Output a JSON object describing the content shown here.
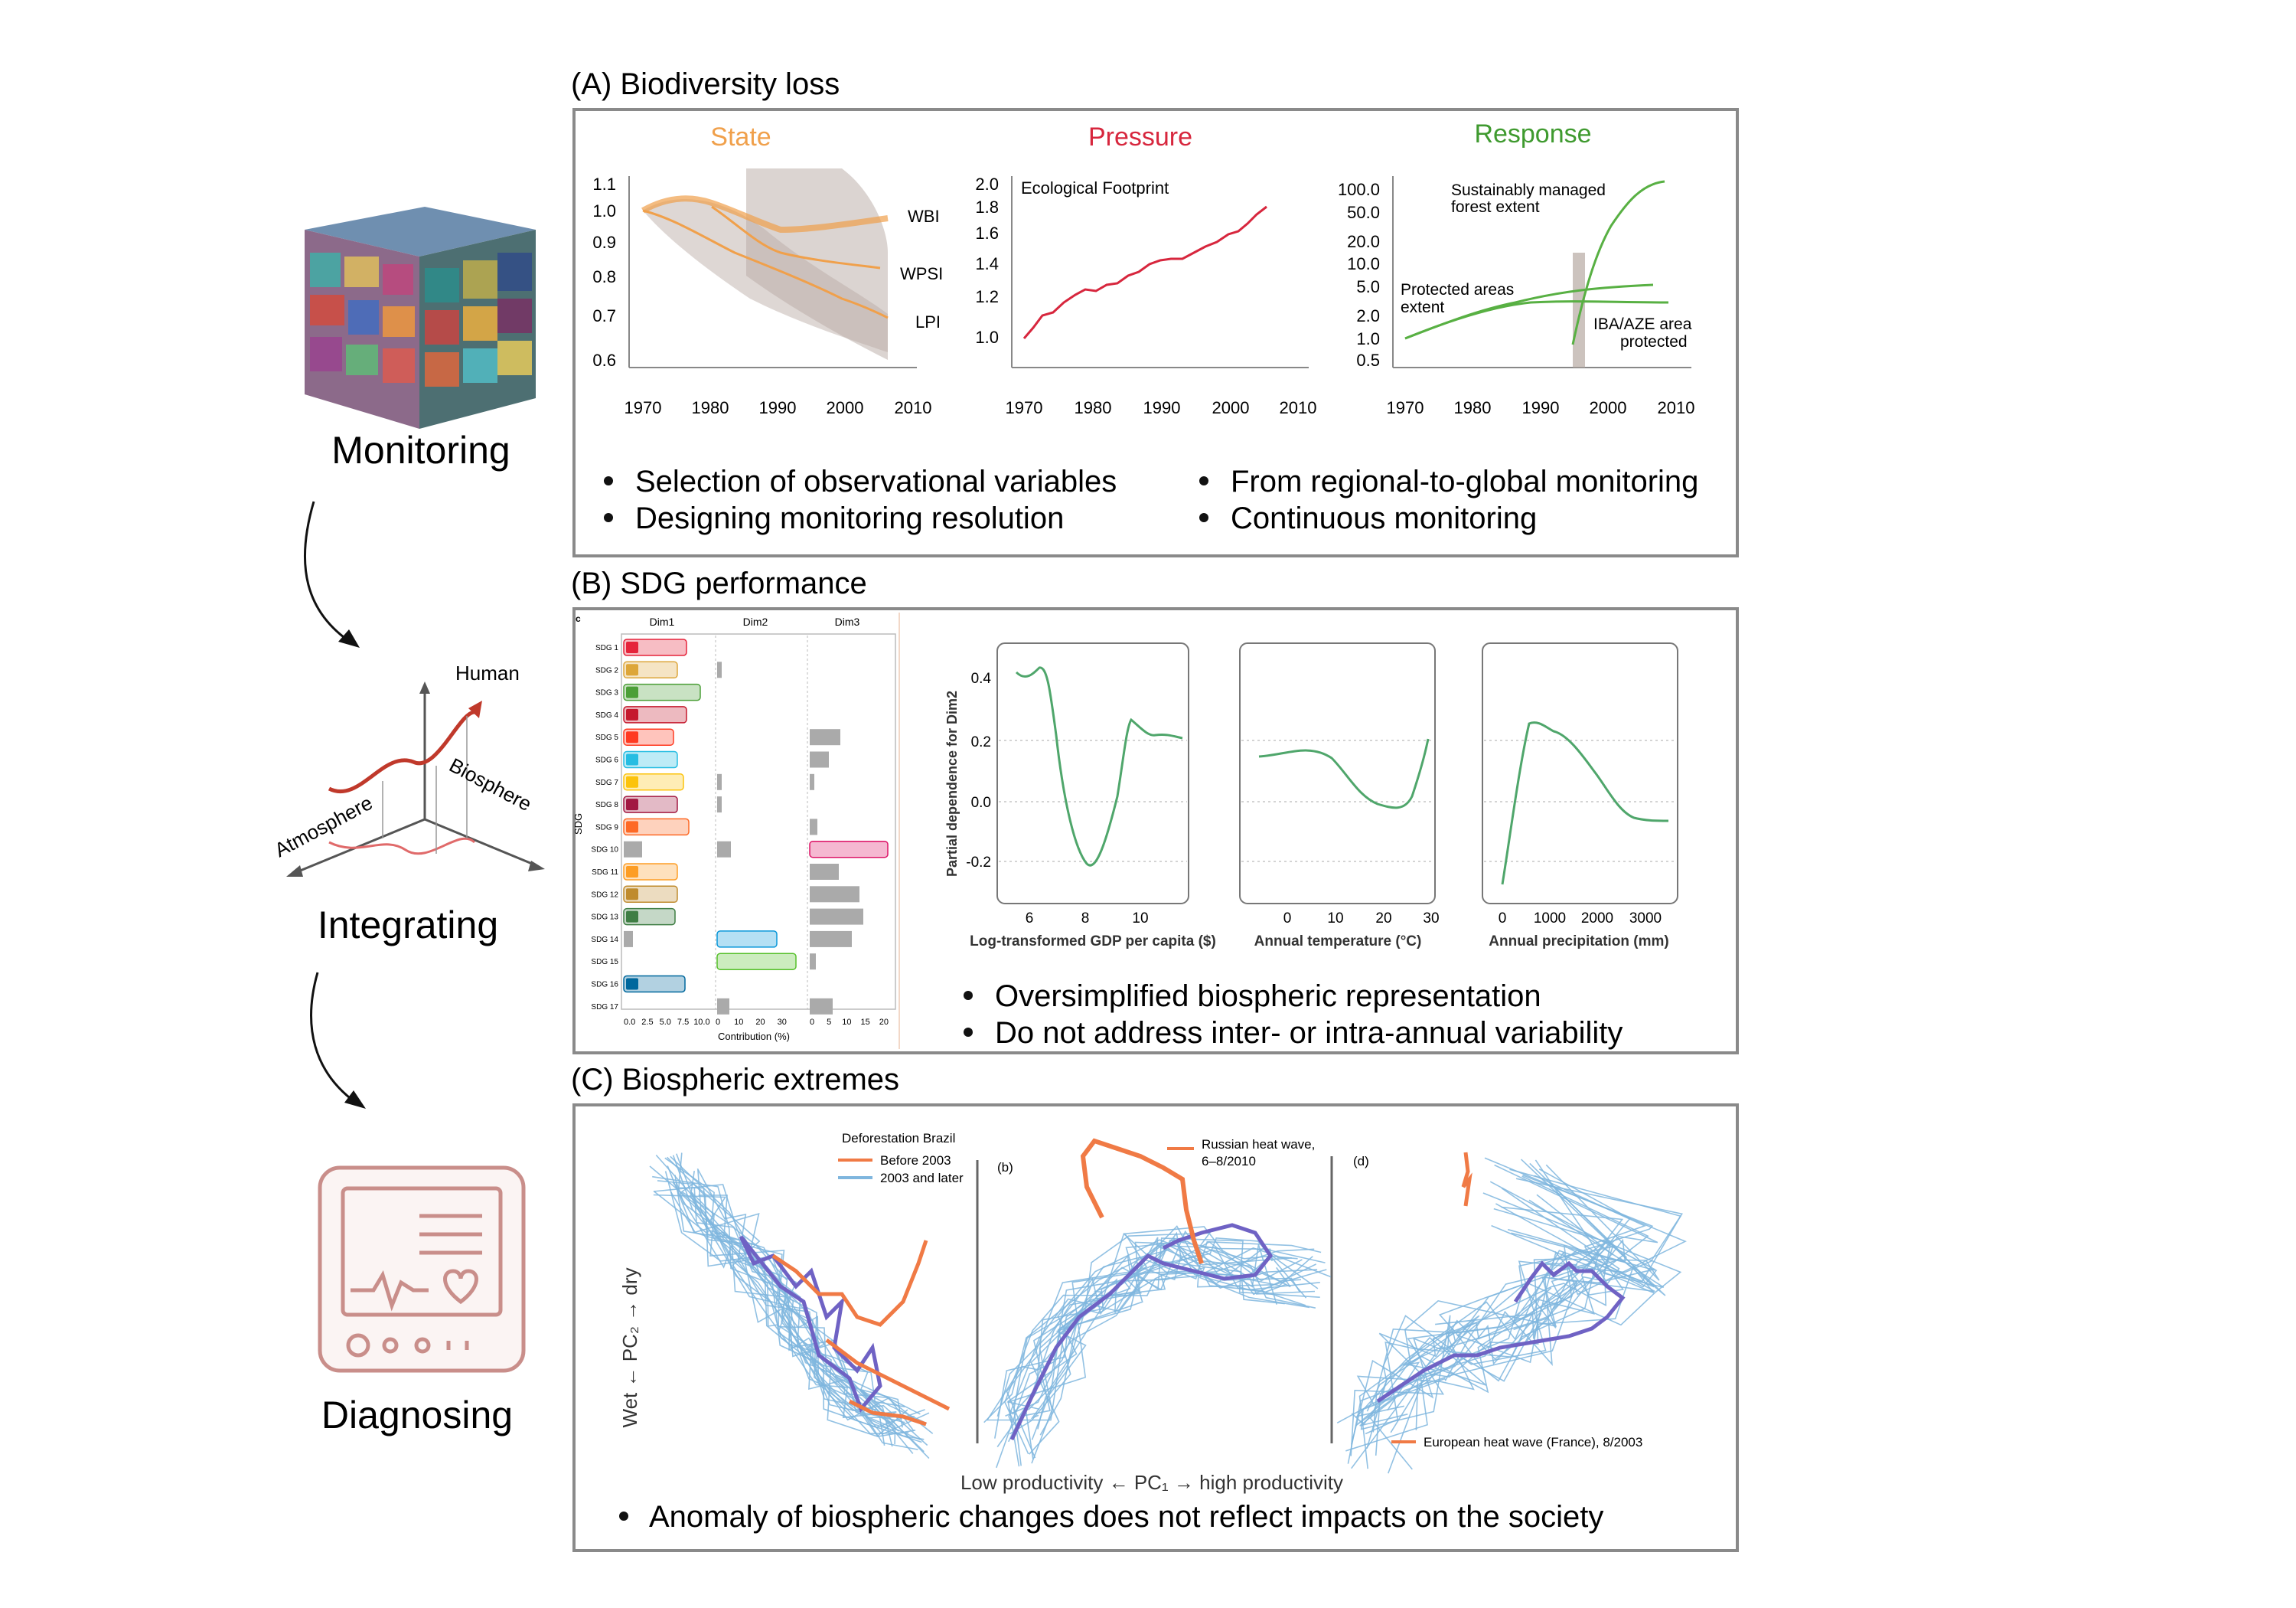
{
  "workflow": {
    "monitoring": "Monitoring",
    "integrating": "Integrating",
    "diagnosing": "Diagnosing",
    "axes": {
      "human": "Human",
      "biosphere": "Biosphere",
      "atmosphere": "Atmosphere"
    }
  },
  "panelA": {
    "title": "(A) Biodiversity loss",
    "state": {
      "title": "State",
      "yticks": [
        "1.1",
        "1.0",
        "0.9",
        "0.8",
        "0.7",
        "0.6"
      ],
      "xticks": [
        "1970",
        "1980",
        "1990",
        "2000",
        "2010"
      ],
      "series_labels": [
        "WBI",
        "WPSI",
        "LPI"
      ]
    },
    "pressure": {
      "title": "Pressure",
      "yticks": [
        "2.0",
        "1.8",
        "1.6",
        "1.4",
        "1.2",
        "1.0"
      ],
      "xticks": [
        "1970",
        "1980",
        "1990",
        "2000",
        "2010"
      ],
      "label": "Ecological Footprint"
    },
    "response": {
      "title": "Response",
      "yticks": [
        "100.0",
        "50.0",
        "20.0",
        "10.0",
        "5.0",
        "2.0",
        "1.0",
        "0.5"
      ],
      "xticks": [
        "1970",
        "1980",
        "1990",
        "2000",
        "2010"
      ],
      "label_forest_1": "Sustainably managed",
      "label_forest_2": "forest extent",
      "label_protected_1": "Protected areas",
      "label_protected_2": "extent",
      "label_iba_1": "IBA/AZE area",
      "label_iba_2": "protected"
    },
    "bullets": [
      "Selection of observational variables",
      "Designing monitoring resolution",
      "From regional-to-global monitoring",
      "Continuous monitoring"
    ]
  },
  "panelB": {
    "title": "(B) SDG performance",
    "dims": [
      "Dim1",
      "Dim2",
      "Dim3"
    ],
    "sdg_axis_label": "SDG",
    "xlabel": "Contribution (%)",
    "sdgs": [
      "SDG 1",
      "SDG 2",
      "SDG 3",
      "SDG 4",
      "SDG 5",
      "SDG 6",
      "SDG 7",
      "SDG 8",
      "SDG 9",
      "SDG 10",
      "SDG 11",
      "SDG 12",
      "SDG 13",
      "SDG 14",
      "SDG 15",
      "SDG 16",
      "SDG 17"
    ],
    "dim1_ticks": [
      "0.0",
      "2.5",
      "5.0",
      "7.5",
      "10.0"
    ],
    "dim2_ticks": [
      "0",
      "10",
      "20",
      "30"
    ],
    "dim3_ticks": [
      "0",
      "5",
      "10",
      "15",
      "20"
    ],
    "pd_ylabel": "Partial dependence for Dim2",
    "pd_yticks": [
      "0.4",
      "0.2",
      "0.0",
      "-0.2"
    ],
    "gdp": {
      "xlabel": "Log-transformed GDP per capita ($)",
      "xticks": [
        "6",
        "8",
        "10"
      ]
    },
    "temp": {
      "xlabel": "Annual temperature (°C)",
      "xticks": [
        "0",
        "10",
        "20",
        "30"
      ]
    },
    "precip": {
      "xlabel": "Annual precipitation (mm)",
      "xticks": [
        "0",
        "1000",
        "2000",
        "3000"
      ]
    },
    "bullets": [
      "Oversimplified biospheric representation",
      "Do not address inter- or intra-annual variability"
    ]
  },
  "panelC": {
    "title": "(C) Biospheric extremes",
    "legend_a_title": "Deforestation Brazil",
    "legend_a_1": "Before 2003",
    "legend_a_2": "2003 and later",
    "label_b": "(b)",
    "legend_b_1": "Russian heat wave,",
    "legend_b_2": "6–8/2010",
    "label_d": "(d)",
    "legend_d": "European heat wave (France), 8/2003",
    "ylabel": "Wet ← PC₂ → dry",
    "xlabel": "Low productivity ← PC₁ → high productivity",
    "bullet": "Anomaly of biospheric changes does not reflect impacts on the society"
  },
  "colors": {
    "state": "#f0a04b",
    "pressure": "#d7263d",
    "response": "#3f9a2f",
    "frame": "#8a8a8a",
    "green_line": "#4fa66b",
    "blue_trace": "#7fb6de",
    "purple_trace": "#6f62c4",
    "orange_trace": "#f07a45",
    "icon_red": "#c98e8a"
  }
}
